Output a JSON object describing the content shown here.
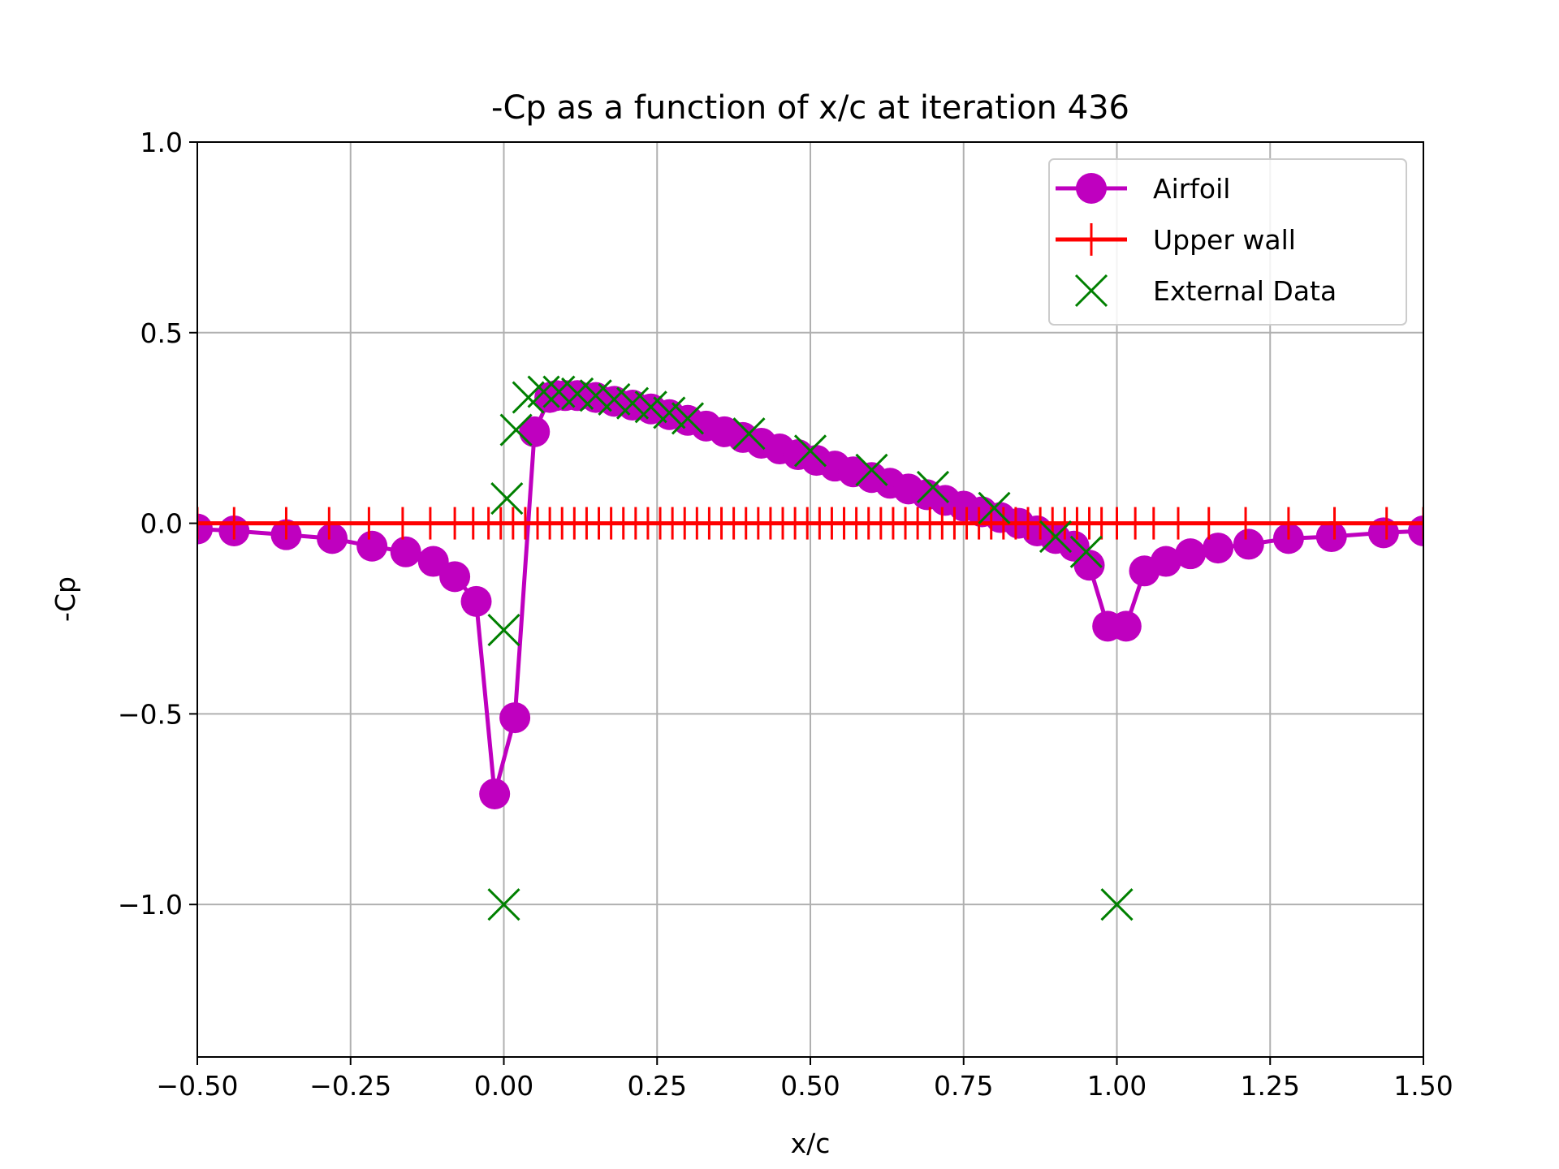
{
  "chart_data": {
    "type": "line",
    "title": "-Cp as a function of x/c at iteration 436",
    "xlabel": "x/c",
    "ylabel": "-Cp",
    "xlim": [
      -0.5,
      1.5
    ],
    "ylim": [
      -1.4,
      1.0
    ],
    "xticks": [
      -0.5,
      -0.25,
      0.0,
      0.25,
      0.5,
      0.75,
      1.0,
      1.25,
      1.5
    ],
    "xtick_labels": [
      "−0.50",
      "−0.25",
      "0.00",
      "0.25",
      "0.50",
      "0.75",
      "1.00",
      "1.25",
      "1.50"
    ],
    "yticks": [
      -1.0,
      -0.5,
      0.0,
      0.5,
      1.0
    ],
    "ytick_labels": [
      "−1.0",
      "−0.5",
      "0.0",
      "0.5",
      "1.0"
    ],
    "grid": true,
    "legend_position": "top-right",
    "series": [
      {
        "name": "Airfoil",
        "color": "#bf00bf",
        "style": "line-circle",
        "x": [
          -0.5,
          -0.44,
          -0.355,
          -0.28,
          -0.215,
          -0.16,
          -0.115,
          -0.08,
          -0.045,
          -0.015,
          0.018,
          0.05,
          0.075,
          0.085,
          0.1,
          0.12,
          0.15,
          0.18,
          0.21,
          0.24,
          0.27,
          0.3,
          0.33,
          0.36,
          0.39,
          0.42,
          0.45,
          0.48,
          0.51,
          0.54,
          0.57,
          0.6,
          0.63,
          0.66,
          0.69,
          0.72,
          0.75,
          0.78,
          0.81,
          0.84,
          0.87,
          0.9,
          0.93,
          0.955,
          0.985,
          1.015,
          1.045,
          1.08,
          1.12,
          1.165,
          1.215,
          1.28,
          1.35,
          1.435,
          1.5
        ],
        "y": [
          -0.015,
          -0.02,
          -0.03,
          -0.04,
          -0.06,
          -0.075,
          -0.1,
          -0.14,
          -0.205,
          -0.71,
          -0.51,
          0.24,
          0.33,
          0.335,
          0.335,
          0.335,
          0.33,
          0.32,
          0.31,
          0.3,
          0.285,
          0.27,
          0.255,
          0.24,
          0.225,
          0.21,
          0.195,
          0.18,
          0.165,
          0.15,
          0.135,
          0.12,
          0.105,
          0.09,
          0.075,
          0.06,
          0.045,
          0.03,
          0.015,
          0.0,
          -0.02,
          -0.04,
          -0.06,
          -0.11,
          -0.27,
          -0.27,
          -0.125,
          -0.1,
          -0.08,
          -0.065,
          -0.055,
          -0.04,
          -0.035,
          -0.025,
          -0.02
        ]
      },
      {
        "name": "Upper wall",
        "color": "#ff0000",
        "style": "line-plus",
        "x": [
          -0.5,
          -0.44,
          -0.355,
          -0.285,
          -0.22,
          -0.165,
          -0.12,
          -0.08,
          -0.05,
          -0.025,
          -0.005,
          0.015,
          0.035,
          0.055,
          0.075,
          0.095,
          0.115,
          0.135,
          0.155,
          0.175,
          0.195,
          0.215,
          0.235,
          0.255,
          0.275,
          0.295,
          0.315,
          0.335,
          0.355,
          0.375,
          0.395,
          0.415,
          0.435,
          0.455,
          0.475,
          0.495,
          0.515,
          0.535,
          0.555,
          0.575,
          0.595,
          0.615,
          0.635,
          0.655,
          0.675,
          0.695,
          0.715,
          0.735,
          0.755,
          0.775,
          0.795,
          0.815,
          0.835,
          0.855,
          0.875,
          0.895,
          0.915,
          0.935,
          0.955,
          0.975,
          1.0,
          1.03,
          1.06,
          1.1,
          1.15,
          1.21,
          1.28,
          1.355,
          1.44,
          1.5
        ],
        "y": [
          0.0,
          0.0,
          0.0,
          0.0,
          0.0,
          0.0,
          0.0,
          0.0,
          0.0,
          0.0,
          0.0,
          0.0,
          0.0,
          0.0,
          0.0,
          0.0,
          0.0,
          0.0,
          0.0,
          0.0,
          0.0,
          0.0,
          0.0,
          0.0,
          0.0,
          0.0,
          0.0,
          0.0,
          0.0,
          0.0,
          0.0,
          0.0,
          0.0,
          0.0,
          0.0,
          0.0,
          0.0,
          0.0,
          0.0,
          0.0,
          0.0,
          0.0,
          0.0,
          0.0,
          0.0,
          0.0,
          0.0,
          0.0,
          0.0,
          0.0,
          0.0,
          0.0,
          0.0,
          0.0,
          0.0,
          0.0,
          0.0,
          0.0,
          0.0,
          0.0,
          0.0,
          0.0,
          0.0,
          0.0,
          0.0,
          0.0,
          0.0,
          0.0,
          0.0,
          0.0
        ]
      },
      {
        "name": "External Data",
        "color": "#008000",
        "style": "marker-x",
        "x": [
          0.0,
          0.0,
          0.005,
          0.02,
          0.04,
          0.065,
          0.09,
          0.12,
          0.15,
          0.18,
          0.21,
          0.24,
          0.27,
          0.3,
          0.4,
          0.5,
          0.6,
          0.7,
          0.8,
          0.9,
          0.95,
          1.0
        ],
        "y": [
          -1.0,
          -0.28,
          0.065,
          0.245,
          0.33,
          0.345,
          0.345,
          0.34,
          0.335,
          0.325,
          0.315,
          0.305,
          0.29,
          0.275,
          0.235,
          0.19,
          0.14,
          0.095,
          0.04,
          -0.035,
          -0.075,
          -1.0
        ]
      }
    ]
  }
}
